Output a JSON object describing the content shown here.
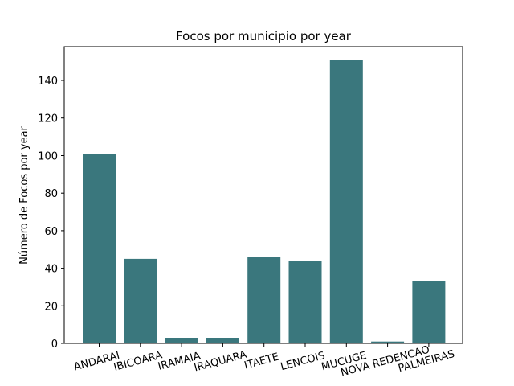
{
  "chart_data": {
    "type": "bar",
    "title": "Focos por municipio por year",
    "xlabel": "",
    "ylabel": "Número de Focos por year",
    "categories": [
      "ANDARAI",
      "IBICOARA",
      "IRAMAIA",
      "IRAQUARA",
      "ITAETE",
      "LENCOIS",
      "MUCUGE",
      "NOVA REDENCAO",
      "PALMEIRAS"
    ],
    "values": [
      101,
      45,
      3,
      3,
      46,
      44,
      151,
      1,
      33
    ],
    "ylim": [
      0,
      158
    ],
    "yticks": [
      0,
      20,
      40,
      60,
      80,
      100,
      120,
      140
    ],
    "bar_color": "#3a777d",
    "grid": false,
    "legend": "none"
  }
}
